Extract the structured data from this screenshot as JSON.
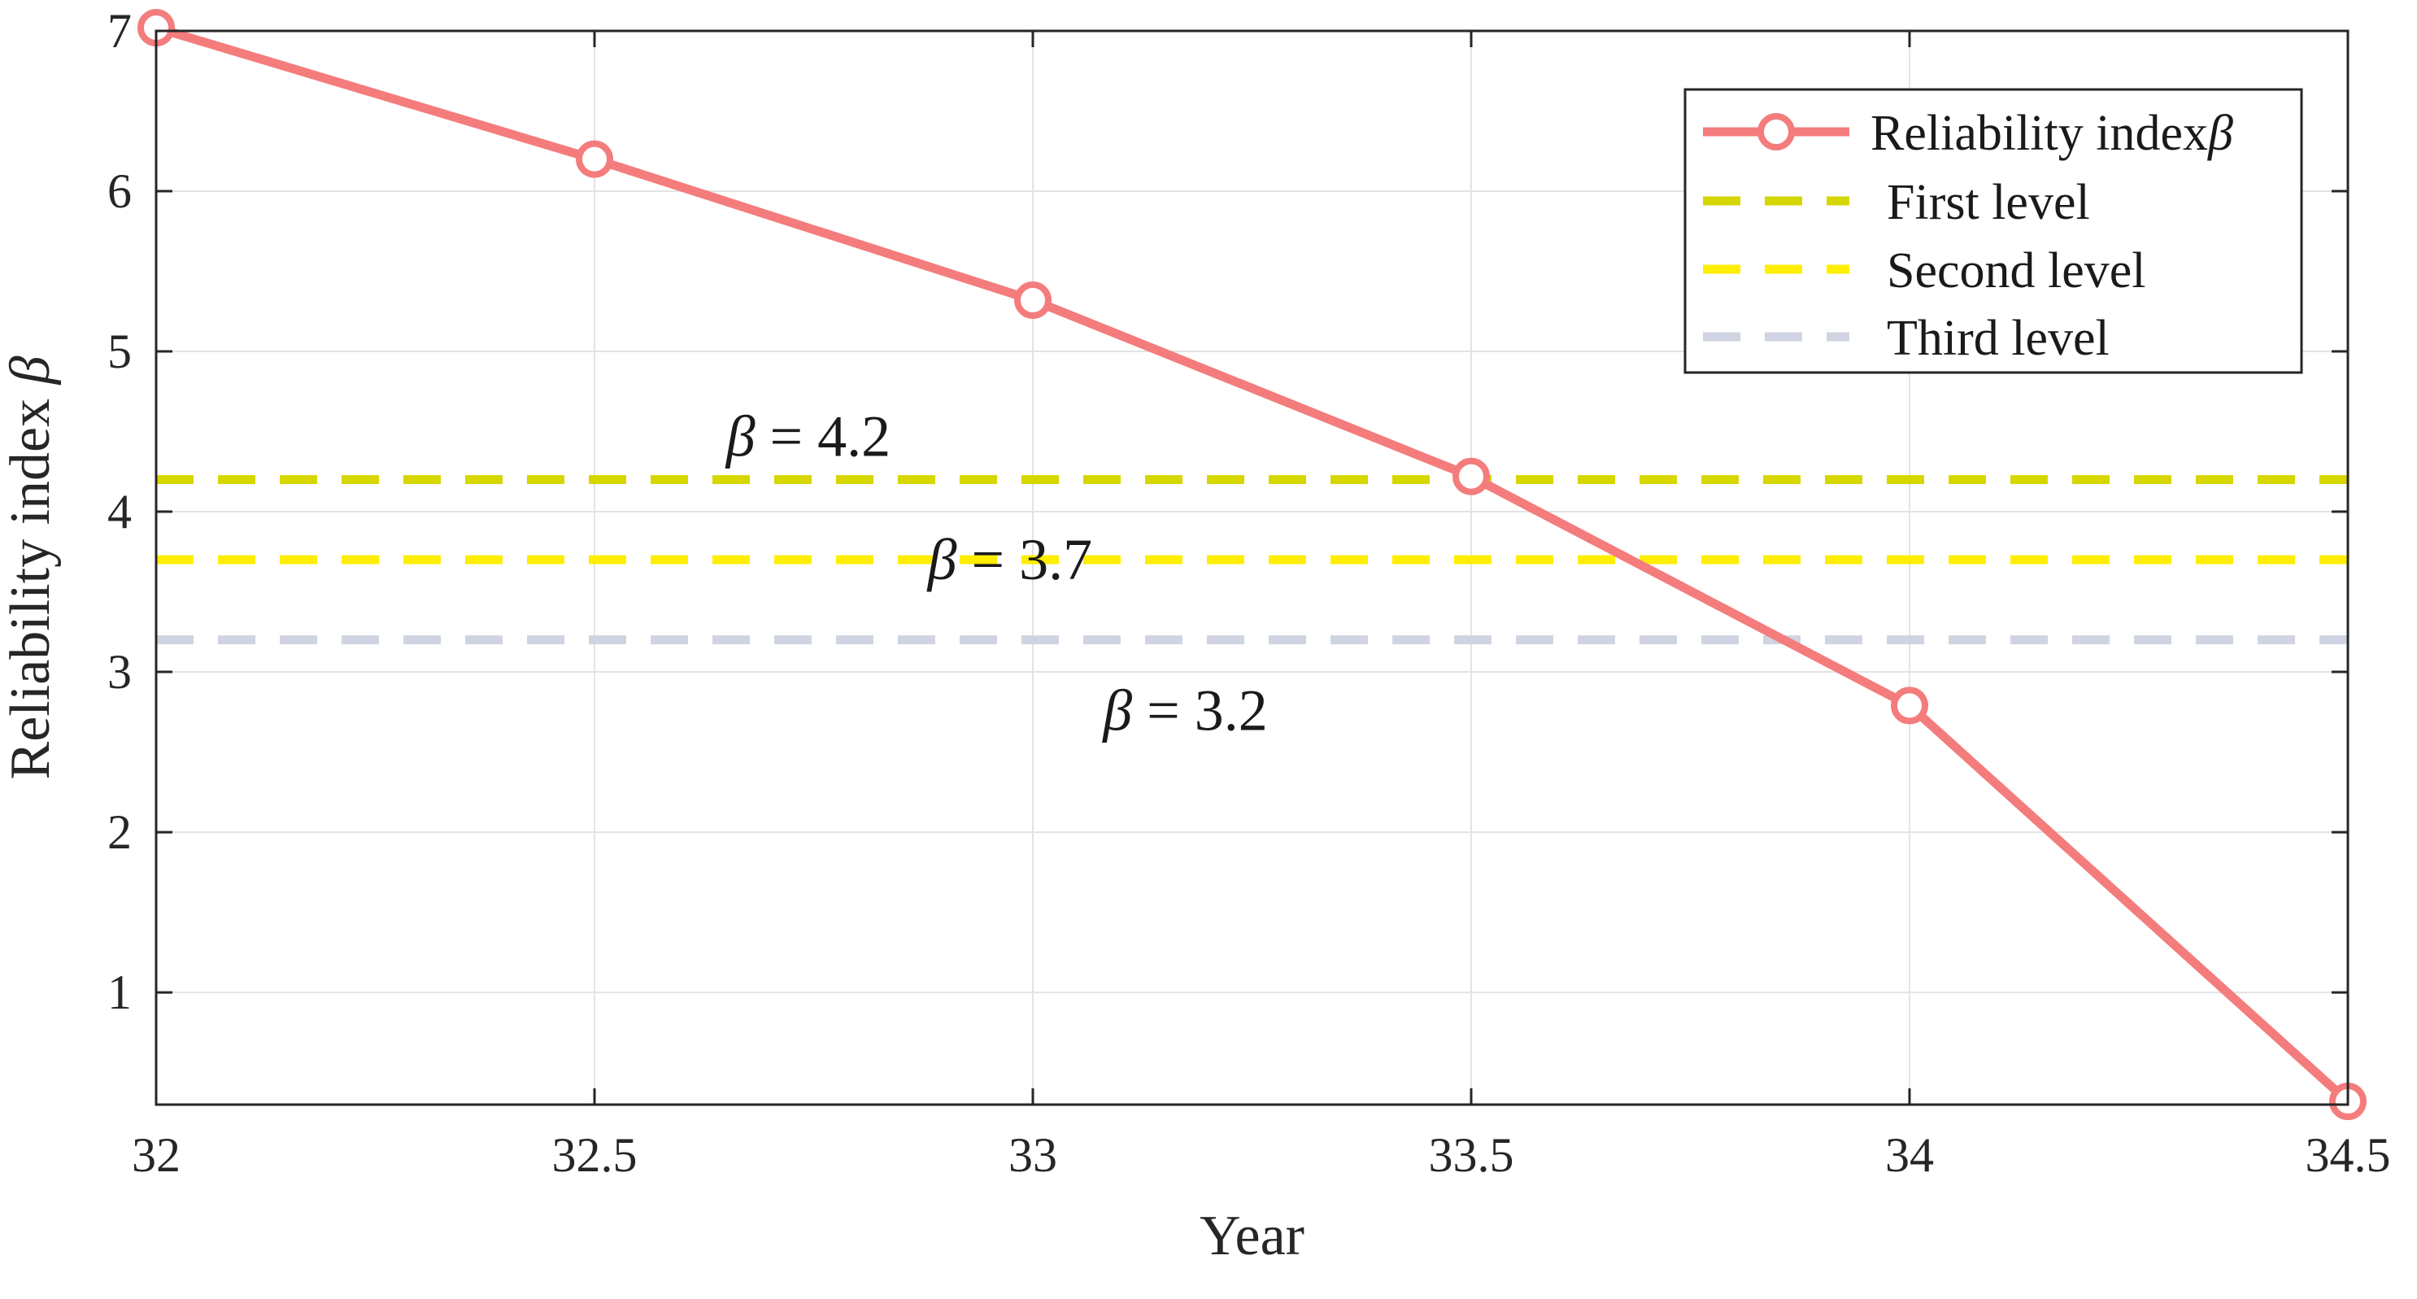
{
  "chart_data": {
    "type": "line",
    "xlabel": "Year",
    "ylabel_text": "Reliability index ",
    "ylabel_symbol": "β",
    "x": [
      32,
      32.5,
      33,
      33.5,
      34,
      34.5
    ],
    "xlim": [
      32,
      34.5
    ],
    "ylim": [
      0.3,
      7
    ],
    "xticks": [
      32,
      32.5,
      33,
      33.5,
      34,
      34.5
    ],
    "xtick_labels": [
      "32",
      "32.5",
      "33",
      "33.5",
      "34",
      "34.5"
    ],
    "yticks": [
      1,
      2,
      3,
      4,
      5,
      6,
      7
    ],
    "ytick_labels": [
      "1",
      "2",
      "3",
      "4",
      "5",
      "6",
      "7"
    ],
    "grid": true,
    "legend_position": "top-right",
    "series": [
      {
        "name_text": "Reliability index",
        "name_symbol": "β",
        "values": [
          7.02,
          6.2,
          5.32,
          4.22,
          2.79,
          0.32
        ],
        "color": "#f47c7c",
        "style": "solid",
        "marker": "circle"
      }
    ],
    "reference_lines": [
      {
        "name": "First level",
        "y": 4.2,
        "color": "#d6d600",
        "style": "dashed"
      },
      {
        "name": "Second level",
        "y": 3.7,
        "color": "#ffee00",
        "style": "dashed"
      },
      {
        "name": "Third level",
        "y": 3.2,
        "color": "#d0d4e2",
        "style": "dashed"
      }
    ],
    "annotations": [
      {
        "symbol": "β",
        "text": " = 4.2",
        "x": 32.65,
        "y": 4.47
      },
      {
        "symbol": "β",
        "text": " = 3.7",
        "x": 32.88,
        "y": 3.7
      },
      {
        "symbol": "β",
        "text": " = 3.2",
        "x": 33.08,
        "y": 2.76
      }
    ]
  }
}
